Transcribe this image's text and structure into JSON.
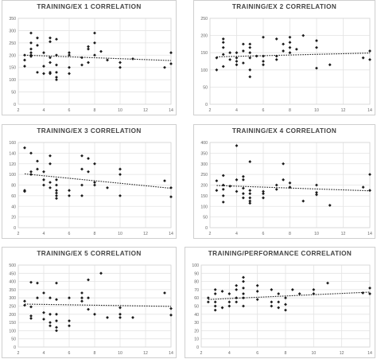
{
  "chart_data": [
    {
      "type": "scatter",
      "title": "TRAINING/EX 1 CORRELATION",
      "xlim": [
        2,
        14
      ],
      "ylim": [
        0,
        350
      ],
      "xticks": [
        2,
        4,
        6,
        8,
        10,
        12,
        14
      ],
      "yticks": [
        0,
        50,
        100,
        150,
        200,
        250,
        300,
        350
      ],
      "grid": true,
      "trendline": [
        [
          2.5,
          200
        ],
        [
          14,
          178
        ]
      ],
      "points": [
        [
          2.5,
          200
        ],
        [
          2.5,
          180
        ],
        [
          2.5,
          155
        ],
        [
          3,
          290
        ],
        [
          3,
          250
        ],
        [
          3,
          225
        ],
        [
          3,
          210
        ],
        [
          3,
          200
        ],
        [
          3,
          195
        ],
        [
          3.5,
          240
        ],
        [
          3.5,
          270
        ],
        [
          3.5,
          130
        ],
        [
          4,
          210
        ],
        [
          4,
          155
        ],
        [
          4,
          125
        ],
        [
          4.5,
          270
        ],
        [
          4.5,
          255
        ],
        [
          4.5,
          190
        ],
        [
          4.5,
          170
        ],
        [
          4.5,
          130
        ],
        [
          4.5,
          125
        ],
        [
          5,
          265
        ],
        [
          5,
          200
        ],
        [
          5,
          160
        ],
        [
          5,
          130
        ],
        [
          5,
          110
        ],
        [
          5,
          100
        ],
        [
          6,
          210
        ],
        [
          6,
          200
        ],
        [
          6,
          150
        ],
        [
          6,
          125
        ],
        [
          7,
          190
        ],
        [
          7,
          160
        ],
        [
          7.5,
          235
        ],
        [
          7.5,
          225
        ],
        [
          7.5,
          170
        ],
        [
          8,
          290
        ],
        [
          8,
          250
        ],
        [
          8,
          200
        ],
        [
          8.5,
          215
        ],
        [
          9,
          180
        ],
        [
          10,
          170
        ],
        [
          10,
          150
        ],
        [
          11,
          185
        ],
        [
          13.5,
          150
        ],
        [
          14,
          210
        ],
        [
          14,
          165
        ]
      ]
    },
    {
      "type": "scatter",
      "title": "TRAINING/EX 2 CORRELATION",
      "xlim": [
        2,
        14
      ],
      "ylim": [
        0,
        250
      ],
      "xticks": [
        2,
        4,
        6,
        8,
        10,
        12,
        14
      ],
      "yticks": [
        0,
        50,
        100,
        150,
        200,
        250
      ],
      "grid": true,
      "trendline": [
        [
          2.5,
          138
        ],
        [
          14,
          149
        ]
      ],
      "points": [
        [
          2.5,
          135
        ],
        [
          2.5,
          100
        ],
        [
          3,
          190
        ],
        [
          3,
          180
        ],
        [
          3,
          165
        ],
        [
          3,
          145
        ],
        [
          3,
          110
        ],
        [
          3.5,
          130
        ],
        [
          3.5,
          150
        ],
        [
          4,
          150
        ],
        [
          4,
          135
        ],
        [
          4,
          125
        ],
        [
          4,
          115
        ],
        [
          4.5,
          175
        ],
        [
          4.5,
          155
        ],
        [
          4.5,
          120
        ],
        [
          5,
          175
        ],
        [
          5,
          165
        ],
        [
          5,
          150
        ],
        [
          5,
          135
        ],
        [
          5,
          100
        ],
        [
          5,
          80
        ],
        [
          5.5,
          140
        ],
        [
          6,
          195
        ],
        [
          6,
          140
        ],
        [
          6,
          125
        ],
        [
          6,
          115
        ],
        [
          7,
          190
        ],
        [
          7,
          140
        ],
        [
          7,
          130
        ],
        [
          7.5,
          175
        ],
        [
          7.5,
          155
        ],
        [
          8,
          195
        ],
        [
          8,
          180
        ],
        [
          8,
          165
        ],
        [
          8,
          150
        ],
        [
          8.5,
          160
        ],
        [
          9,
          200
        ],
        [
          10,
          185
        ],
        [
          10,
          165
        ],
        [
          10,
          105
        ],
        [
          11,
          115
        ],
        [
          13.5,
          135
        ],
        [
          14,
          155
        ],
        [
          14,
          130
        ]
      ]
    },
    {
      "type": "scatter",
      "title": "TRAINING/EX 3 CORRELATION",
      "xlim": [
        2,
        14
      ],
      "ylim": [
        0,
        160
      ],
      "xticks": [
        2,
        4,
        6,
        8,
        10,
        12,
        14
      ],
      "yticks": [
        0,
        20,
        40,
        60,
        80,
        100,
        120,
        140,
        160
      ],
      "grid": true,
      "trendline": [
        [
          2.5,
          101
        ],
        [
          14,
          74
        ]
      ],
      "points": [
        [
          2.5,
          150
        ],
        [
          2.5,
          70
        ],
        [
          2.5,
          68
        ],
        [
          3,
          140
        ],
        [
          3,
          105
        ],
        [
          3,
          100
        ],
        [
          3.5,
          125
        ],
        [
          3.5,
          110
        ],
        [
          4,
          105
        ],
        [
          4,
          90
        ],
        [
          4,
          80
        ],
        [
          4.5,
          135
        ],
        [
          4.5,
          120
        ],
        [
          4.5,
          85
        ],
        [
          4.5,
          75
        ],
        [
          5,
          90
        ],
        [
          5,
          80
        ],
        [
          5,
          70
        ],
        [
          5,
          65
        ],
        [
          5,
          60
        ],
        [
          5,
          55
        ],
        [
          6,
          70
        ],
        [
          6,
          60
        ],
        [
          7,
          135
        ],
        [
          7,
          110
        ],
        [
          7,
          80
        ],
        [
          7,
          60
        ],
        [
          7.5,
          130
        ],
        [
          7.5,
          105
        ],
        [
          8,
          120
        ],
        [
          8,
          85
        ],
        [
          8,
          80
        ],
        [
          9,
          75
        ],
        [
          10,
          110
        ],
        [
          10,
          100
        ],
        [
          10,
          60
        ],
        [
          13.5,
          88
        ],
        [
          14,
          75
        ],
        [
          14,
          58
        ]
      ]
    },
    {
      "type": "scatter",
      "title": "TRAINING/EX 4 CORRELATION",
      "xlim": [
        2,
        14
      ],
      "ylim": [
        0,
        400
      ],
      "xticks": [
        2,
        4,
        6,
        8,
        10,
        12,
        14
      ],
      "yticks": [
        0,
        50,
        100,
        150,
        200,
        250,
        300,
        350,
        400
      ],
      "grid": true,
      "trendline": [
        [
          2.5,
          198
        ],
        [
          14,
          173
        ]
      ],
      "points": [
        [
          2.5,
          220
        ],
        [
          2.5,
          175
        ],
        [
          3,
          245
        ],
        [
          3,
          200
        ],
        [
          3,
          180
        ],
        [
          3,
          150
        ],
        [
          3,
          120
        ],
        [
          3.5,
          195
        ],
        [
          4,
          385
        ],
        [
          4,
          225
        ],
        [
          4,
          170
        ],
        [
          4.5,
          240
        ],
        [
          4.5,
          225
        ],
        [
          4.5,
          185
        ],
        [
          4.5,
          160
        ],
        [
          4.5,
          140
        ],
        [
          5,
          310
        ],
        [
          5,
          175
        ],
        [
          5,
          160
        ],
        [
          5,
          140
        ],
        [
          5,
          125
        ],
        [
          5,
          115
        ],
        [
          6,
          170
        ],
        [
          6,
          160
        ],
        [
          6,
          140
        ],
        [
          7,
          180
        ],
        [
          7,
          200
        ],
        [
          7.5,
          300
        ],
        [
          7.5,
          225
        ],
        [
          8,
          210
        ],
        [
          8,
          190
        ],
        [
          9,
          125
        ],
        [
          10,
          200
        ],
        [
          10,
          165
        ],
        [
          10,
          155
        ],
        [
          11,
          105
        ],
        [
          13.5,
          190
        ],
        [
          14,
          250
        ],
        [
          14,
          175
        ]
      ]
    },
    {
      "type": "scatter",
      "title": "TRAINING/EX 5 CORRELATION",
      "xlim": [
        2,
        14
      ],
      "ylim": [
        0,
        500
      ],
      "xticks": [
        2,
        4,
        6,
        8,
        10,
        12,
        14
      ],
      "yticks": [
        0,
        50,
        100,
        150,
        200,
        250,
        300,
        350,
        400,
        450,
        500
      ],
      "grid": true,
      "trendline": [
        [
          2.5,
          262
        ],
        [
          14,
          248
        ]
      ],
      "points": [
        [
          2.5,
          280
        ],
        [
          2.5,
          255
        ],
        [
          3,
          395
        ],
        [
          3,
          245
        ],
        [
          3,
          190
        ],
        [
          3,
          175
        ],
        [
          3.5,
          390
        ],
        [
          3.5,
          300
        ],
        [
          4,
          330
        ],
        [
          4,
          210
        ],
        [
          4,
          170
        ],
        [
          4.5,
          300
        ],
        [
          4.5,
          200
        ],
        [
          4.5,
          150
        ],
        [
          4.5,
          130
        ],
        [
          5,
          390
        ],
        [
          5,
          290
        ],
        [
          5,
          200
        ],
        [
          5,
          160
        ],
        [
          5,
          120
        ],
        [
          5,
          100
        ],
        [
          6,
          300
        ],
        [
          6,
          160
        ],
        [
          6,
          130
        ],
        [
          7,
          300
        ],
        [
          7,
          330
        ],
        [
          7,
          280
        ],
        [
          7.5,
          410
        ],
        [
          7.5,
          300
        ],
        [
          7.5,
          230
        ],
        [
          8,
          200
        ],
        [
          8.5,
          450
        ],
        [
          9,
          180
        ],
        [
          10,
          240
        ],
        [
          10,
          200
        ],
        [
          10,
          180
        ],
        [
          11,
          180
        ],
        [
          13.5,
          330
        ],
        [
          14,
          235
        ],
        [
          14,
          195
        ]
      ]
    },
    {
      "type": "scatter",
      "title": "TRAINING/PERFORMANCE CORRELATION",
      "xlim": [
        2,
        14
      ],
      "ylim": [
        0,
        100
      ],
      "xticks": [
        2,
        4,
        6,
        8,
        10,
        12,
        14
      ],
      "yticks": [
        0,
        10,
        20,
        30,
        40,
        50,
        60,
        70,
        80,
        90,
        100
      ],
      "grid": true,
      "trendline": [
        [
          2.5,
          58
        ],
        [
          14,
          67
        ]
      ],
      "points": [
        [
          2.5,
          60
        ],
        [
          2.5,
          55
        ],
        [
          3,
          70
        ],
        [
          3,
          65
        ],
        [
          3,
          55
        ],
        [
          3,
          50
        ],
        [
          3,
          45
        ],
        [
          3.5,
          48
        ],
        [
          3.5,
          68
        ],
        [
          4,
          65
        ],
        [
          4,
          55
        ],
        [
          4,
          50
        ],
        [
          4.5,
          75
        ],
        [
          4.5,
          70
        ],
        [
          4.5,
          60
        ],
        [
          4.5,
          55
        ],
        [
          5,
          85
        ],
        [
          5,
          80
        ],
        [
          5,
          72
        ],
        [
          5,
          65
        ],
        [
          5,
          60
        ],
        [
          5,
          50
        ],
        [
          6,
          75
        ],
        [
          6,
          68
        ],
        [
          6,
          58
        ],
        [
          7,
          70
        ],
        [
          7,
          55
        ],
        [
          7,
          50
        ],
        [
          7.5,
          65
        ],
        [
          7.5,
          55
        ],
        [
          7.5,
          48
        ],
        [
          8,
          60
        ],
        [
          8,
          52
        ],
        [
          8,
          45
        ],
        [
          8.5,
          70
        ],
        [
          9,
          65
        ],
        [
          10,
          70
        ],
        [
          10,
          65
        ],
        [
          11,
          78
        ],
        [
          13.5,
          66
        ],
        [
          14,
          72
        ],
        [
          14,
          65
        ]
      ]
    }
  ]
}
